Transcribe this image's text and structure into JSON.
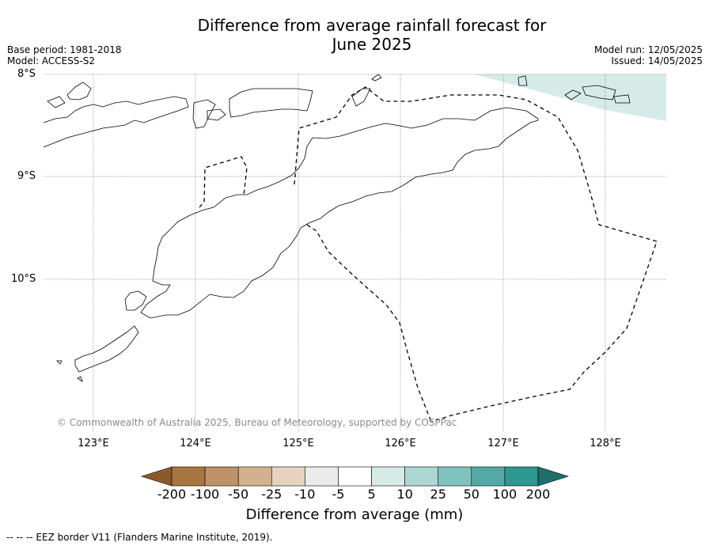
{
  "title_line1": "Difference from average rainfall forecast for",
  "title_line2": "June 2025",
  "base_period": "Base period: 1981-2018",
  "model": "Model: ACCESS-S2",
  "model_run": "Model run: 12/05/2025",
  "issued": "Issued: 14/05/2025",
  "lat_labels": [
    "8°S",
    "9°S",
    "10°S"
  ],
  "lon_labels": [
    "123°E",
    "124°E",
    "125°E",
    "126°E",
    "127°E",
    "128°E"
  ],
  "copyright": "© Commonwealth of Australia 2025, Bureau of Meteorology, supported by COSPPac",
  "colorbar": {
    "labels": [
      "-200",
      "-100",
      "-50",
      "-25",
      "-10",
      "-5",
      "5",
      "10",
      "25",
      "50",
      "100",
      "200"
    ],
    "colors": [
      "#8a5a2b",
      "#a87440",
      "#c0926a",
      "#d3b08e",
      "#e5d2bf",
      "#ebebeb",
      "#ffffff",
      "#d6ebe8",
      "#add7d3",
      "#80c2bd",
      "#55a9a5",
      "#2e9893",
      "#1e6e6a"
    ],
    "title": "Difference from average (mm)"
  },
  "footnote": "--  --  -- EEZ border V11 (Flanders Marine Institute, 2019).",
  "shading_color": "#d6ebe8"
}
